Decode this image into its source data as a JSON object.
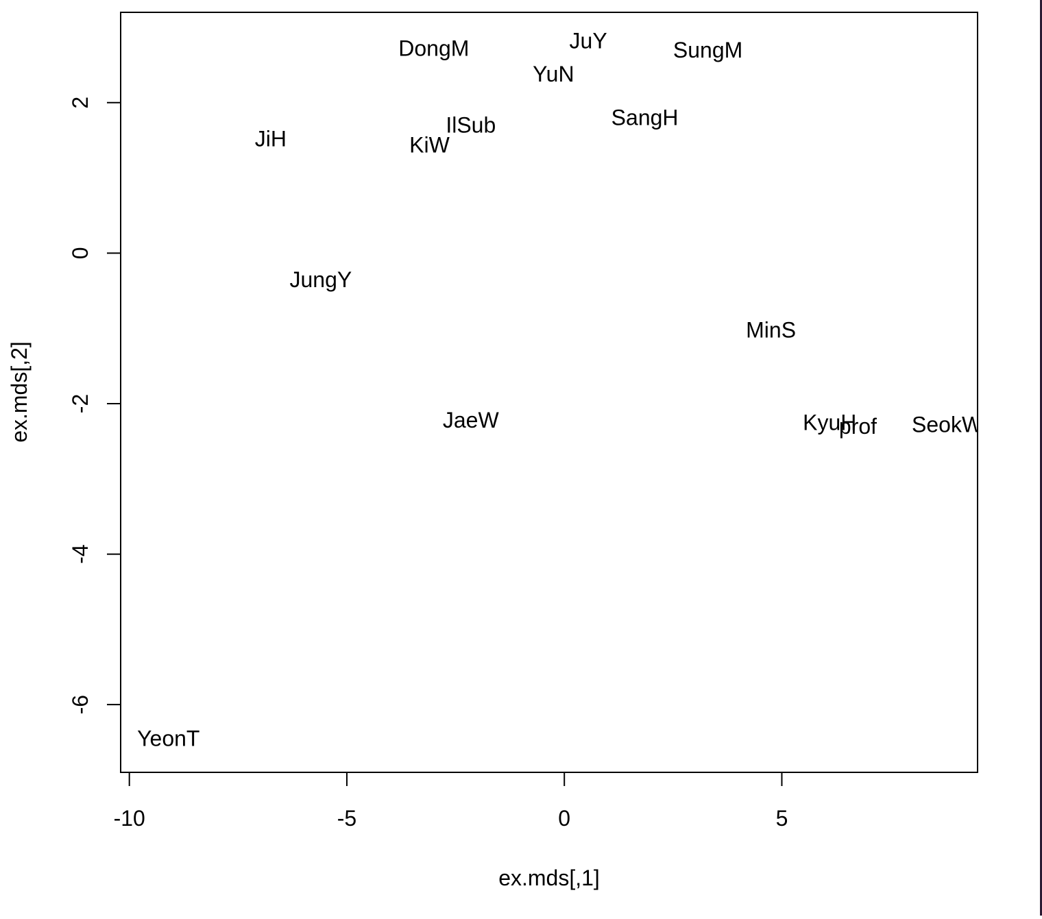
{
  "chart_data": {
    "type": "scatter",
    "xlabel": "ex.mds[,1]",
    "ylabel": "ex.mds[,2]",
    "xlim": [
      -10.2,
      9.5
    ],
    "ylim": [
      -6.9,
      3.2
    ],
    "x_ticks": [
      -10,
      -5,
      0,
      5
    ],
    "y_ticks": [
      -6,
      -4,
      -2,
      0,
      2
    ],
    "grid": false,
    "legend": "none",
    "marker": "text-label",
    "points": [
      {
        "label": "DongM",
        "x": -3.0,
        "y": 2.72
      },
      {
        "label": "JuY",
        "x": 0.55,
        "y": 2.82
      },
      {
        "label": "SungM",
        "x": 3.3,
        "y": 2.7
      },
      {
        "label": "YuN",
        "x": -0.25,
        "y": 2.38
      },
      {
        "label": "SangH",
        "x": 1.85,
        "y": 1.8
      },
      {
        "label": "IlSub",
        "x": -2.15,
        "y": 1.7
      },
      {
        "label": "JiH",
        "x": -6.75,
        "y": 1.52
      },
      {
        "label": "KiW",
        "x": -3.1,
        "y": 1.44
      },
      {
        "label": "JungY",
        "x": -5.6,
        "y": -0.35
      },
      {
        "label": "MinS",
        "x": 4.75,
        "y": -1.02
      },
      {
        "label": "JaeW",
        "x": -2.15,
        "y": -2.22
      },
      {
        "label": "KyuH",
        "x": 6.1,
        "y": -2.25
      },
      {
        "label": "prof",
        "x": 6.75,
        "y": -2.3
      },
      {
        "label": "SeokW",
        "x": 8.8,
        "y": -2.28
      },
      {
        "label": "YeonT",
        "x": -9.1,
        "y": -6.45
      }
    ]
  }
}
